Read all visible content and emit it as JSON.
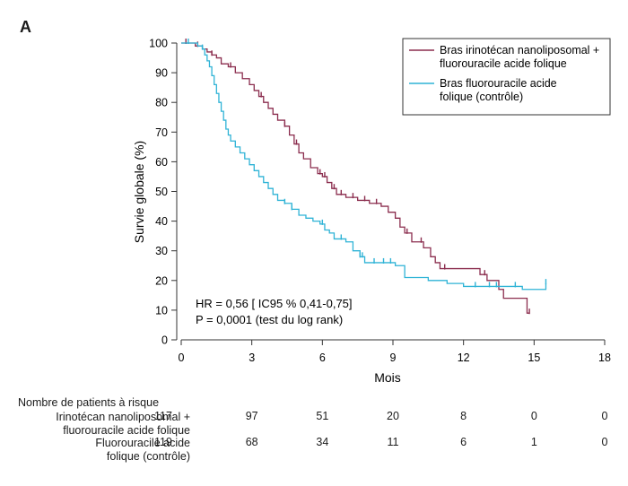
{
  "panel_label": "A",
  "chart_data": {
    "type": "line",
    "step": true,
    "ylabel": "Survie globale (%)",
    "xlabel": "Mois",
    "xlim": [
      0,
      18
    ],
    "ylim": [
      0,
      100
    ],
    "xticks": [
      0,
      3,
      6,
      9,
      12,
      15,
      18
    ],
    "yticks": [
      0,
      10,
      20,
      30,
      40,
      50,
      60,
      70,
      80,
      90,
      100
    ],
    "grid": false,
    "legend_position": "top-right",
    "annotation": [
      "HR = 0,56 [ IC95 % 0,41-0,75]",
      "P = 0,0001 (test du log rank)"
    ],
    "series": [
      {
        "name": "Bras irinotécan nanoliposomal + fluorouracile acide folique",
        "legend_lines": [
          "Bras irinotécan nanoliposomal +",
          "fluorouracile acide folique"
        ],
        "color": "#8b2d4e",
        "points": [
          [
            0,
            100
          ],
          [
            0.6,
            99
          ],
          [
            0.9,
            98
          ],
          [
            1.1,
            97
          ],
          [
            1.3,
            96
          ],
          [
            1.5,
            95
          ],
          [
            1.7,
            93
          ],
          [
            2.0,
            92
          ],
          [
            2.3,
            90
          ],
          [
            2.6,
            88
          ],
          [
            2.9,
            86
          ],
          [
            3.1,
            84
          ],
          [
            3.3,
            82
          ],
          [
            3.5,
            80
          ],
          [
            3.7,
            78
          ],
          [
            3.9,
            76
          ],
          [
            4.1,
            74
          ],
          [
            4.4,
            72
          ],
          [
            4.6,
            69
          ],
          [
            4.8,
            66
          ],
          [
            5.0,
            63
          ],
          [
            5.2,
            61
          ],
          [
            5.5,
            58
          ],
          [
            5.8,
            56
          ],
          [
            6.0,
            55
          ],
          [
            6.2,
            53
          ],
          [
            6.4,
            51
          ],
          [
            6.6,
            49
          ],
          [
            7.0,
            48
          ],
          [
            7.5,
            47
          ],
          [
            8.0,
            46
          ],
          [
            8.5,
            45
          ],
          [
            8.8,
            43
          ],
          [
            9.1,
            41
          ],
          [
            9.3,
            38
          ],
          [
            9.5,
            36
          ],
          [
            9.8,
            33
          ],
          [
            10.3,
            31
          ],
          [
            10.6,
            28
          ],
          [
            10.8,
            26
          ],
          [
            11.0,
            24
          ],
          [
            12.7,
            22
          ],
          [
            13.0,
            20
          ],
          [
            13.5,
            17
          ],
          [
            13.7,
            14
          ],
          [
            14.6,
            14
          ],
          [
            14.7,
            9
          ],
          [
            14.8,
            9
          ]
        ],
        "censor_x": [
          0.2,
          0.7,
          1.3,
          2.1,
          3.4,
          4.4,
          4.9,
          5.9,
          6.1,
          6.5,
          6.8,
          7.3,
          7.8,
          8.3,
          9.6,
          10.2,
          11.2,
          12.9,
          14.8
        ]
      },
      {
        "name": "Bras fluorouracile acide folique (contrôle)",
        "legend_lines": [
          "Bras fluorouracile acide",
          "folique (contrôle)"
        ],
        "color": "#2fb3d6",
        "points": [
          [
            0,
            100
          ],
          [
            0.7,
            99
          ],
          [
            0.9,
            98
          ],
          [
            1.0,
            96
          ],
          [
            1.1,
            94
          ],
          [
            1.2,
            92
          ],
          [
            1.3,
            89
          ],
          [
            1.4,
            86
          ],
          [
            1.5,
            83
          ],
          [
            1.6,
            80
          ],
          [
            1.7,
            77
          ],
          [
            1.8,
            74
          ],
          [
            1.9,
            71
          ],
          [
            2.0,
            69
          ],
          [
            2.1,
            67
          ],
          [
            2.3,
            65
          ],
          [
            2.5,
            63
          ],
          [
            2.7,
            61
          ],
          [
            2.9,
            59
          ],
          [
            3.1,
            57
          ],
          [
            3.3,
            55
          ],
          [
            3.5,
            53
          ],
          [
            3.7,
            51
          ],
          [
            3.9,
            49
          ],
          [
            4.1,
            47
          ],
          [
            4.4,
            46
          ],
          [
            4.7,
            44
          ],
          [
            5.0,
            42
          ],
          [
            5.3,
            41
          ],
          [
            5.6,
            40
          ],
          [
            5.9,
            39
          ],
          [
            6.1,
            37
          ],
          [
            6.3,
            36
          ],
          [
            6.5,
            34
          ],
          [
            7.0,
            33
          ],
          [
            7.3,
            30
          ],
          [
            7.6,
            28
          ],
          [
            7.8,
            26
          ],
          [
            8.5,
            26
          ],
          [
            9.1,
            25
          ],
          [
            9.5,
            21
          ],
          [
            10.5,
            20
          ],
          [
            11.3,
            19
          ],
          [
            12.0,
            18
          ],
          [
            14.5,
            17
          ],
          [
            15.5,
            19
          ]
        ],
        "censor_x": [
          0.3,
          0.9,
          4.4,
          4.7,
          6.0,
          6.8,
          7.6,
          7.7,
          8.2,
          8.6,
          8.9,
          12.5,
          13.1,
          13.4,
          14.2,
          15.5
        ]
      }
    ]
  },
  "risk_table": {
    "title": "Nombre de patients à risque",
    "rows": [
      {
        "label_lines": [
          "Irinotécan nanoliposomal +",
          "fluorouracile acide folique"
        ],
        "values": [
          "117",
          "97",
          "51",
          "20",
          "8",
          "0",
          "0"
        ]
      },
      {
        "label_lines": [
          "Fluorouracile acide",
          "folique (contrôle)"
        ],
        "values": [
          "119",
          "68",
          "34",
          "11",
          "6",
          "1",
          "0"
        ]
      }
    ]
  }
}
